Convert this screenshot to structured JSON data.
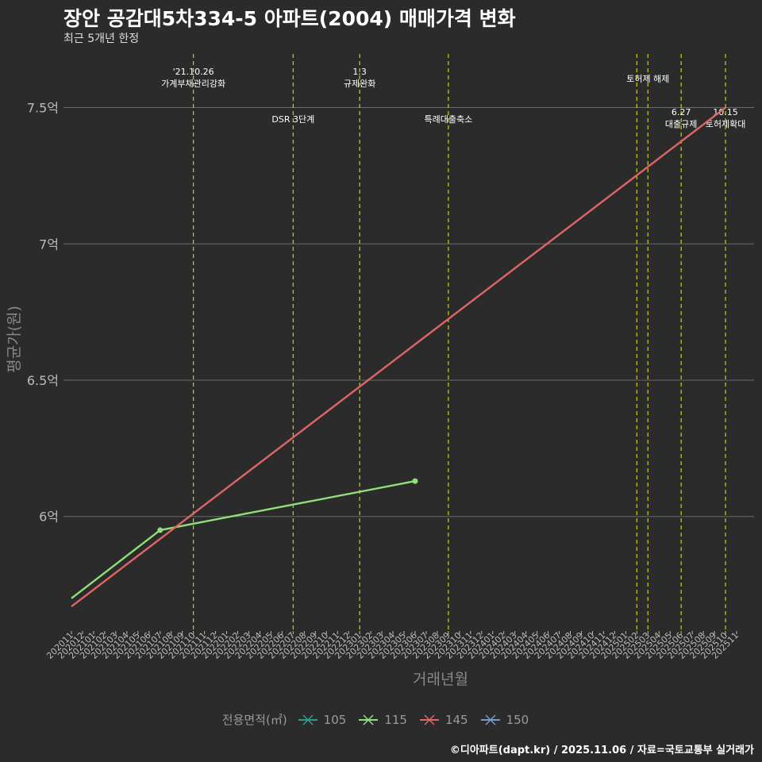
{
  "header": {
    "title": "장안 공감대5차334-5 아파트(2004) 매매가격 변화",
    "subtitle": "최근 5개년 한정"
  },
  "footer": {
    "caption": "©디아파트(dapt.kr) / 2025.11.06 / 자료=국토교통부 실거래가"
  },
  "colors": {
    "background": "#2b2b2b",
    "grid": "#6a6a6a",
    "event_line": "#cccc22",
    "axis_text": "#bbbbbb"
  },
  "chart_data": {
    "type": "line",
    "title": "장안 공감대5차334-5 아파트(2004) 매매가격 변화",
    "xlabel": "거래년월",
    "ylabel": "평균가(원)",
    "ylim": [
      5.58,
      7.72
    ],
    "yticks": [
      {
        "value": 6.0,
        "label": "6억"
      },
      {
        "value": 6.5,
        "label": "6.5억"
      },
      {
        "value": 7.0,
        "label": "7억"
      },
      {
        "value": 7.5,
        "label": "7.5억"
      }
    ],
    "categories": [
      "202011",
      "202012",
      "202101",
      "202102",
      "202103",
      "202104",
      "202105",
      "202106",
      "202107",
      "202108",
      "202109",
      "202110",
      "202111",
      "202112",
      "202201",
      "202202",
      "202203",
      "202204",
      "202205",
      "202206",
      "202207",
      "202208",
      "202209",
      "202210",
      "202211",
      "202212",
      "202301",
      "202302",
      "202303",
      "202304",
      "202305",
      "202306",
      "202307",
      "202308",
      "202309",
      "202310",
      "202311",
      "202312",
      "202401",
      "202402",
      "202403",
      "202404",
      "202405",
      "202406",
      "202407",
      "202408",
      "202409",
      "202410",
      "202411",
      "202412",
      "202501",
      "202502",
      "202503",
      "202504",
      "202505",
      "202506",
      "202507",
      "202508",
      "202509",
      "202510",
      "202511"
    ],
    "legend_title": "전용면적(㎡)",
    "series": [
      {
        "name": "105",
        "color": "#2a9d8f",
        "points": []
      },
      {
        "name": "115",
        "color": "#90e07a",
        "points": [
          {
            "x": "202011",
            "y": 5.7,
            "marker": false
          },
          {
            "x": "202107",
            "y": 5.95,
            "marker": true
          },
          {
            "x": "202306",
            "y": 6.13,
            "marker": true
          }
        ]
      },
      {
        "name": "145",
        "color": "#e06666",
        "points": [
          {
            "x": "202011",
            "y": 5.67,
            "marker": false
          },
          {
            "x": "202510",
            "y": 7.5,
            "marker": false
          }
        ]
      },
      {
        "name": "150",
        "color": "#7799cc",
        "points": []
      }
    ],
    "events": [
      {
        "x": "202110",
        "lines": [
          "'21.10.26",
          "가계부채관리강화"
        ],
        "tier": "top"
      },
      {
        "x": "202207",
        "lines": [
          "DSR 3단계"
        ],
        "tier": "mid"
      },
      {
        "x": "202301",
        "lines": [
          "1.3",
          "규제완화"
        ],
        "tier": "top"
      },
      {
        "x": "202309",
        "lines": [
          "특례대출축소"
        ],
        "tier": "mid"
      },
      {
        "x": "202502",
        "lines": [],
        "tier": "none"
      },
      {
        "x": "202503",
        "lines": [
          "토허제 해제"
        ],
        "tier": "high"
      },
      {
        "x": "202506",
        "lines": [
          "6.27",
          "대출규제"
        ],
        "tier": "low"
      },
      {
        "x": "202510",
        "lines": [
          "10.15",
          "토허제확대"
        ],
        "tier": "low"
      }
    ]
  }
}
